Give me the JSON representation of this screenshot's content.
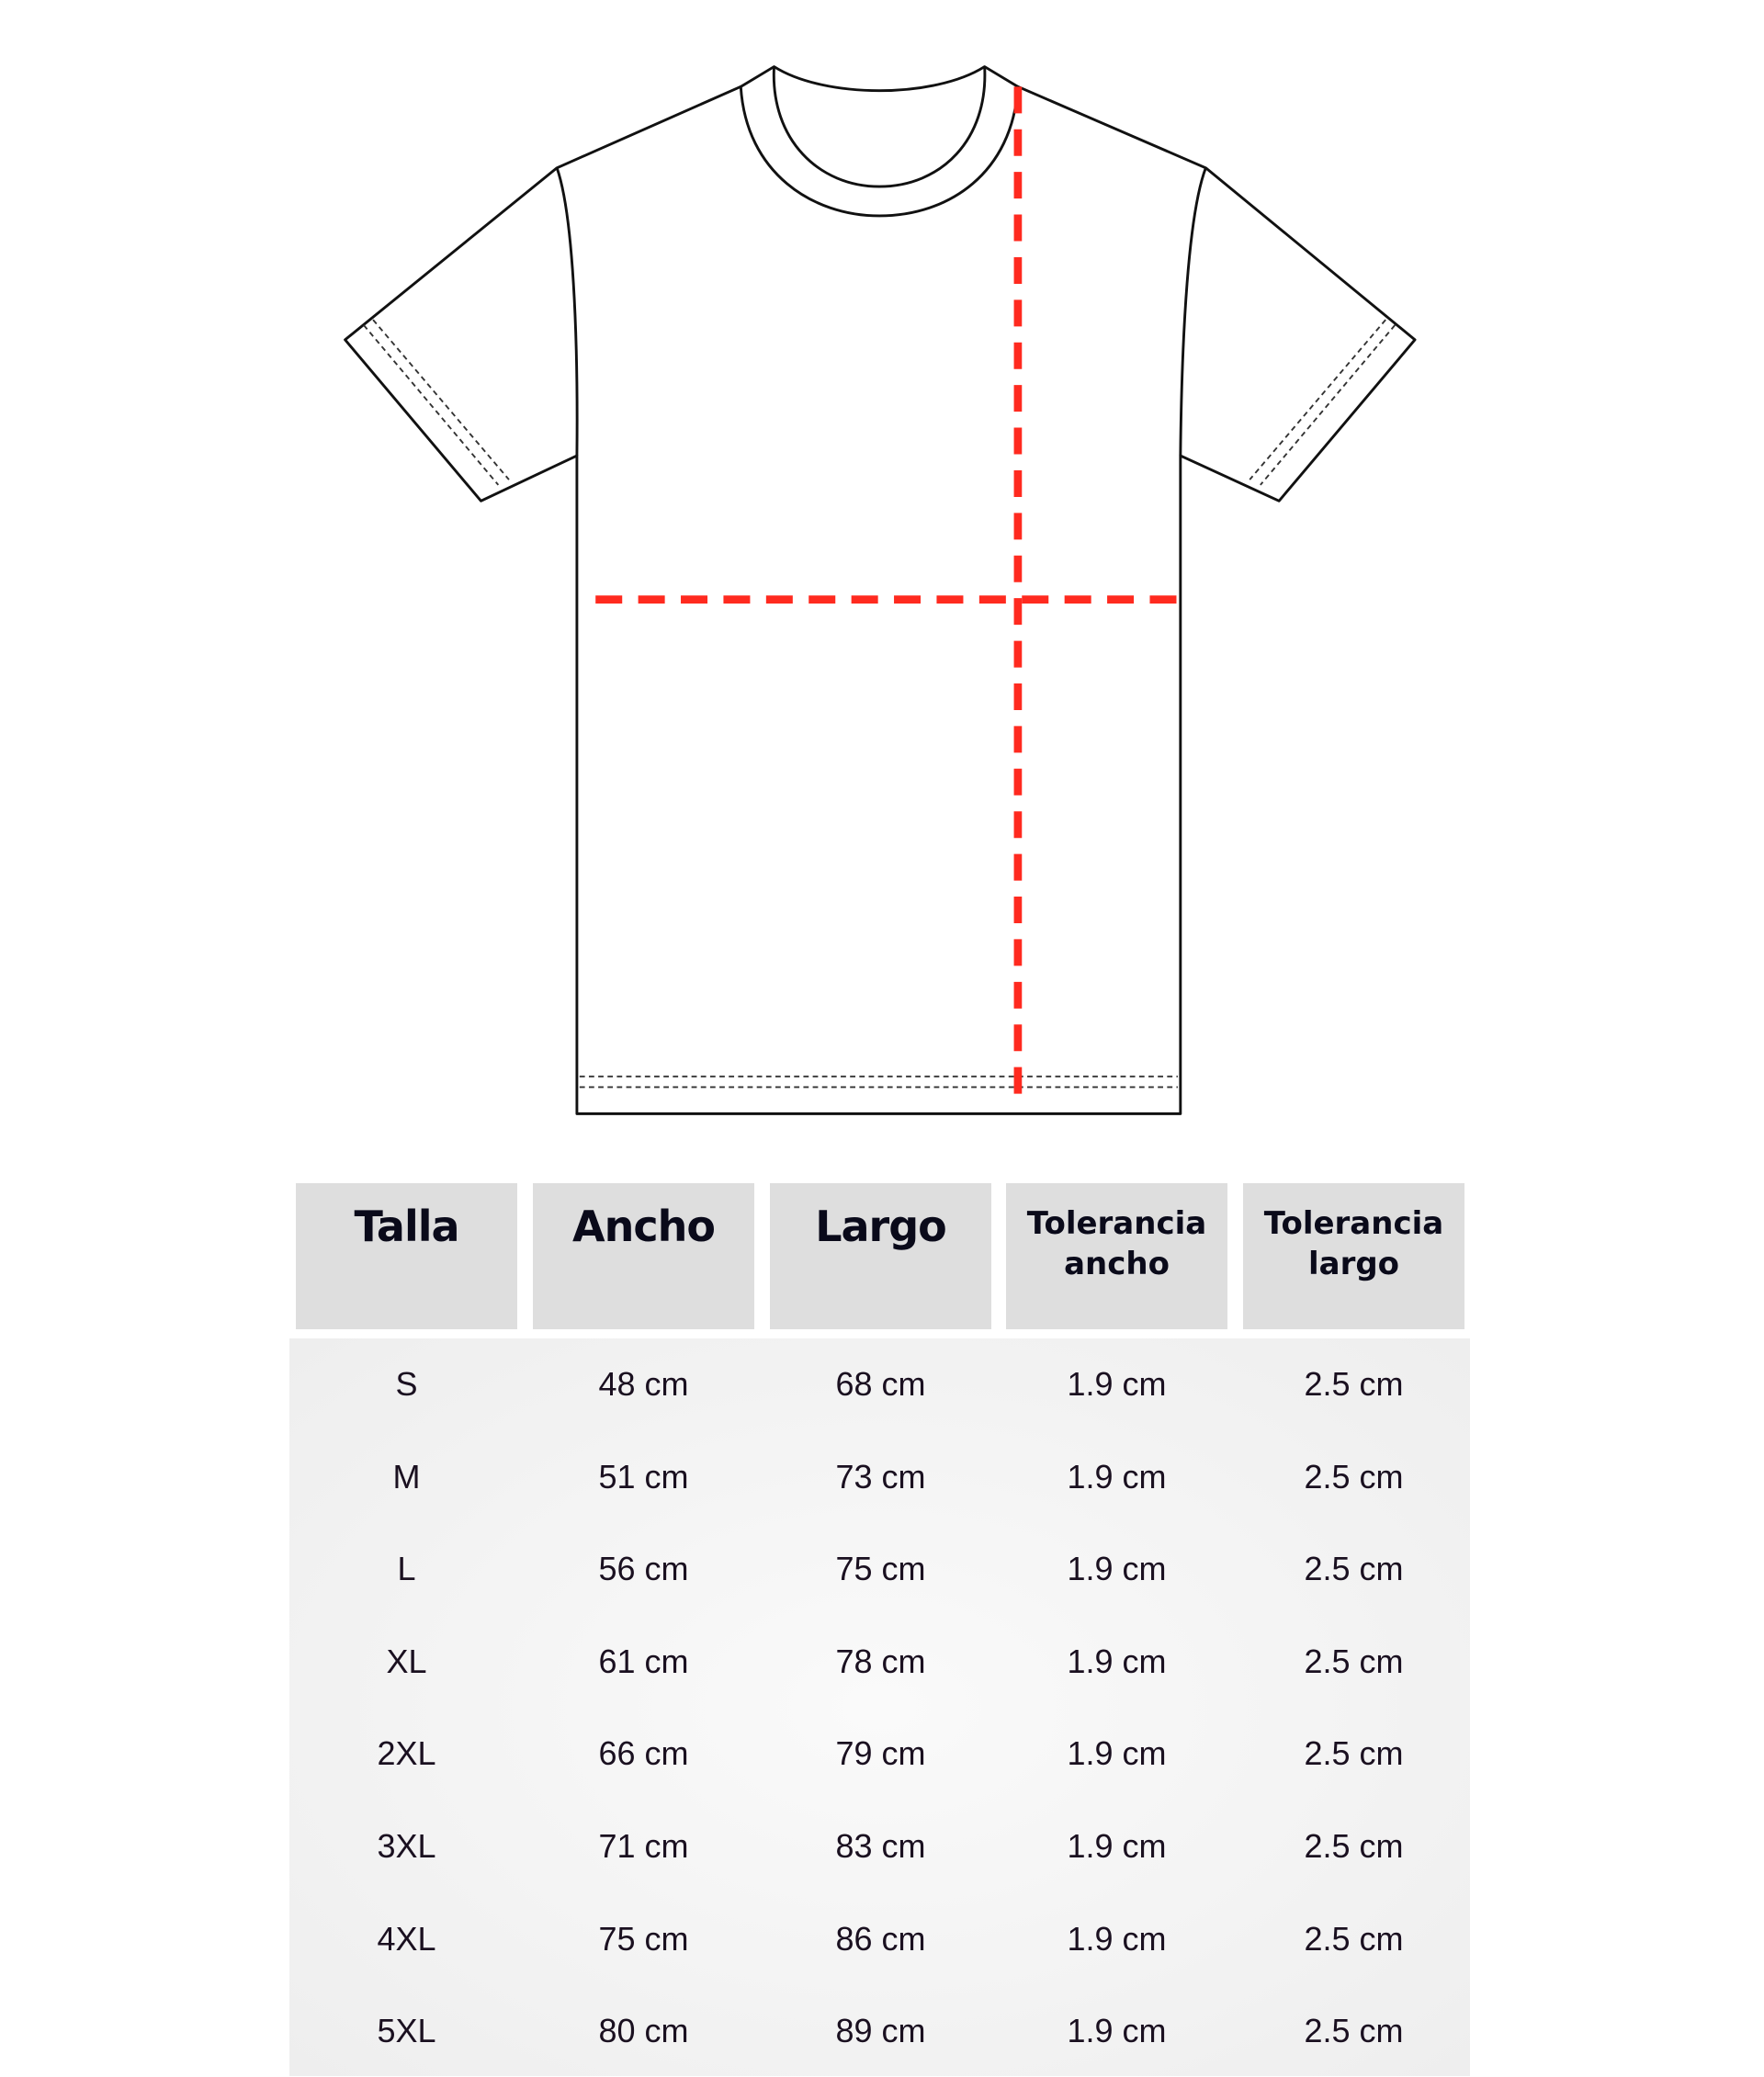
{
  "diagram": {
    "measure_line_color": "#ff2a1f",
    "outline_color": "#111111"
  },
  "table": {
    "headers": [
      {
        "line1": "Talla",
        "line2": ""
      },
      {
        "line1": "Ancho",
        "line2": ""
      },
      {
        "line1": "Largo",
        "line2": ""
      },
      {
        "line1": "Tolerancia",
        "line2": "ancho"
      },
      {
        "line1": "Tolerancia",
        "line2": "largo"
      }
    ],
    "rows": [
      [
        "S",
        "48 cm",
        "68 cm",
        "1.9 cm",
        "2.5 cm"
      ],
      [
        "M",
        "51 cm",
        "73 cm",
        "1.9 cm",
        "2.5 cm"
      ],
      [
        "L",
        "56 cm",
        "75 cm",
        "1.9 cm",
        "2.5 cm"
      ],
      [
        "XL",
        "61 cm",
        "78 cm",
        "1.9 cm",
        "2.5 cm"
      ],
      [
        "2XL",
        "66 cm",
        "79 cm",
        "1.9 cm",
        "2.5 cm"
      ],
      [
        "3XL",
        "71 cm",
        "83 cm",
        "1.9 cm",
        "2.5 cm"
      ],
      [
        "4XL",
        "75 cm",
        "86 cm",
        "1.9 cm",
        "2.5 cm"
      ],
      [
        "5XL",
        "80 cm",
        "89 cm",
        "1.9 cm",
        "2.5 cm"
      ]
    ]
  }
}
